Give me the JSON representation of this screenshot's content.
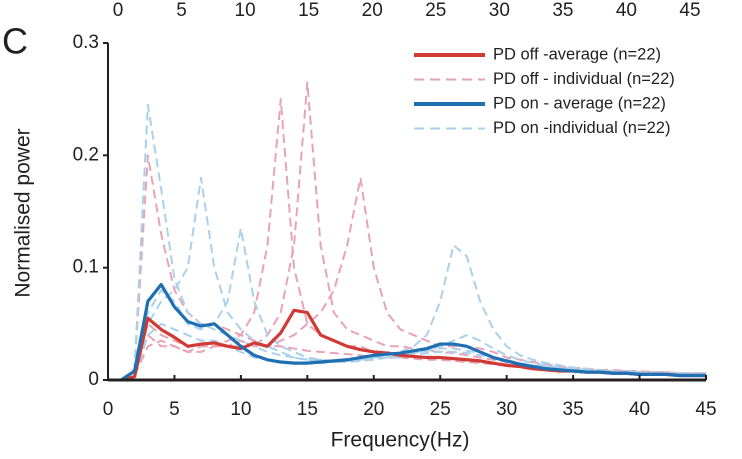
{
  "panel_label": "C",
  "top_axis_ticks": [
    0,
    5,
    10,
    15,
    20,
    25,
    30,
    35,
    40,
    45
  ],
  "chart_data": {
    "type": "line",
    "xlabel": "Frequency(Hz)",
    "ylabel": "Normalised power",
    "x": [
      1,
      2,
      3,
      4,
      5,
      6,
      7,
      8,
      9,
      10,
      11,
      12,
      13,
      14,
      15,
      16,
      17,
      18,
      19,
      20,
      21,
      22,
      23,
      24,
      25,
      26,
      27,
      28,
      29,
      30,
      31,
      32,
      33,
      34,
      35,
      36,
      37,
      38,
      39,
      40,
      41,
      42,
      43,
      44,
      45
    ],
    "xlim": [
      0,
      45
    ],
    "xticks": [
      0,
      5,
      10,
      15,
      20,
      25,
      30,
      35,
      40,
      45
    ],
    "ylim": [
      0,
      0.3
    ],
    "yticks": [
      0,
      0.1,
      0.2,
      0.3
    ],
    "legend_position": "upper right",
    "series": [
      {
        "name": "PD off -average (n=22)",
        "color": "#d13a34",
        "style": "solid",
        "values": [
          0,
          0.003,
          0.055,
          0.045,
          0.038,
          0.03,
          0.032,
          0.033,
          0.03,
          0.028,
          0.033,
          0.03,
          0.042,
          0.062,
          0.06,
          0.04,
          0.035,
          0.03,
          0.027,
          0.025,
          0.024,
          0.022,
          0.021,
          0.02,
          0.02,
          0.019,
          0.018,
          0.017,
          0.015,
          0.013,
          0.012,
          0.01,
          0.009,
          0.008,
          0.008,
          0.007,
          0.007,
          0.006,
          0.006,
          0.005,
          0.005,
          0.005,
          0.004,
          0.004,
          0.004
        ]
      },
      {
        "name": "PD off - individual (n=22)",
        "color": "#e9a3b6",
        "style": "dashed",
        "lines": [
          [
            0,
            0.005,
            0.04,
            0.03,
            0.03,
            0.025,
            0.03,
            0.03,
            0.035,
            0.04,
            0.06,
            0.12,
            0.25,
            0.1,
            0.05,
            0.04,
            0.035,
            0.03,
            0.03,
            0.025,
            0.025,
            0.022,
            0.02,
            0.02,
            0.02,
            0.018,
            0.017,
            0.016,
            0.015,
            0.014,
            0.012,
            0.011,
            0.01,
            0.009,
            0.009,
            0.008,
            0.008,
            0.007,
            0.007,
            0.006,
            0.006,
            0.006,
            0.005,
            0.005,
            0.005
          ],
          [
            0,
            0.003,
            0.05,
            0.04,
            0.035,
            0.03,
            0.03,
            0.03,
            0.03,
            0.03,
            0.03,
            0.04,
            0.06,
            0.12,
            0.265,
            0.12,
            0.06,
            0.045,
            0.04,
            0.035,
            0.03,
            0.03,
            0.028,
            0.026,
            0.025,
            0.024,
            0.022,
            0.02,
            0.018,
            0.016,
            0.014,
            0.012,
            0.011,
            0.01,
            0.009,
            0.009,
            0.008,
            0.008,
            0.007,
            0.007,
            0.006,
            0.006,
            0.006,
            0.005,
            0.005
          ],
          [
            0,
            0.004,
            0.03,
            0.035,
            0.03,
            0.025,
            0.025,
            0.03,
            0.03,
            0.035,
            0.03,
            0.03,
            0.035,
            0.04,
            0.05,
            0.06,
            0.08,
            0.12,
            0.18,
            0.1,
            0.06,
            0.045,
            0.04,
            0.035,
            0.03,
            0.03,
            0.03,
            0.028,
            0.025,
            0.02,
            0.018,
            0.016,
            0.014,
            0.012,
            0.011,
            0.01,
            0.009,
            0.009,
            0.008,
            0.008,
            0.007,
            0.007,
            0.006,
            0.006,
            0.006
          ],
          [
            0,
            0.01,
            0.2,
            0.13,
            0.08,
            0.06,
            0.05,
            0.05,
            0.045,
            0.04,
            0.035,
            0.03,
            0.03,
            0.028,
            0.026,
            0.025,
            0.024,
            0.023,
            0.022,
            0.02,
            0.02,
            0.02,
            0.019,
            0.018,
            0.018,
            0.017,
            0.016,
            0.015,
            0.014,
            0.013,
            0.012,
            0.011,
            0.01,
            0.01,
            0.009,
            0.009,
            0.008,
            0.008,
            0.008,
            0.007,
            0.007,
            0.007,
            0.006,
            0.006,
            0.006
          ]
        ]
      },
      {
        "name": "PD on - average (n=22)",
        "color": "#1f6fb3",
        "style": "solid",
        "values": [
          0,
          0.008,
          0.07,
          0.085,
          0.065,
          0.052,
          0.048,
          0.05,
          0.04,
          0.03,
          0.022,
          0.018,
          0.016,
          0.015,
          0.015,
          0.016,
          0.017,
          0.018,
          0.02,
          0.022,
          0.023,
          0.024,
          0.026,
          0.028,
          0.032,
          0.032,
          0.03,
          0.025,
          0.02,
          0.017,
          0.014,
          0.012,
          0.01,
          0.009,
          0.008,
          0.007,
          0.007,
          0.006,
          0.006,
          0.005,
          0.005,
          0.005,
          0.004,
          0.004,
          0.004
        ]
      },
      {
        "name": "PD on -individual (n=22)",
        "color": "#a9d1ec",
        "style": "dashed",
        "lines": [
          [
            0,
            0.01,
            0.245,
            0.17,
            0.09,
            0.06,
            0.05,
            0.045,
            0.04,
            0.035,
            0.03,
            0.025,
            0.022,
            0.02,
            0.018,
            0.018,
            0.017,
            0.017,
            0.018,
            0.02,
            0.02,
            0.022,
            0.024,
            0.026,
            0.028,
            0.028,
            0.026,
            0.024,
            0.02,
            0.018,
            0.015,
            0.013,
            0.012,
            0.01,
            0.009,
            0.008,
            0.008,
            0.007,
            0.007,
            0.006,
            0.006,
            0.005,
            0.005,
            0.005,
            0.005
          ],
          [
            0,
            0.005,
            0.05,
            0.07,
            0.08,
            0.1,
            0.18,
            0.1,
            0.06,
            0.045,
            0.035,
            0.03,
            0.025,
            0.02,
            0.018,
            0.016,
            0.016,
            0.016,
            0.017,
            0.018,
            0.02,
            0.02,
            0.022,
            0.024,
            0.025,
            0.025,
            0.024,
            0.022,
            0.02,
            0.017,
            0.015,
            0.013,
            0.012,
            0.01,
            0.009,
            0.008,
            0.008,
            0.007,
            0.007,
            0.006,
            0.006,
            0.006,
            0.005,
            0.005,
            0.005
          ],
          [
            0,
            0.004,
            0.04,
            0.05,
            0.045,
            0.04,
            0.035,
            0.035,
            0.03,
            0.025,
            0.02,
            0.018,
            0.016,
            0.015,
            0.015,
            0.015,
            0.016,
            0.017,
            0.018,
            0.02,
            0.022,
            0.025,
            0.03,
            0.04,
            0.07,
            0.12,
            0.11,
            0.07,
            0.045,
            0.03,
            0.022,
            0.018,
            0.015,
            0.013,
            0.011,
            0.01,
            0.009,
            0.008,
            0.008,
            0.007,
            0.007,
            0.006,
            0.006,
            0.006,
            0.006
          ],
          [
            0,
            0.006,
            0.06,
            0.08,
            0.07,
            0.05,
            0.045,
            0.05,
            0.07,
            0.135,
            0.07,
            0.04,
            0.03,
            0.025,
            0.02,
            0.018,
            0.017,
            0.017,
            0.018,
            0.019,
            0.02,
            0.022,
            0.024,
            0.026,
            0.03,
            0.035,
            0.04,
            0.035,
            0.028,
            0.022,
            0.018,
            0.015,
            0.013,
            0.011,
            0.01,
            0.009,
            0.008,
            0.008,
            0.007,
            0.007,
            0.006,
            0.006,
            0.006,
            0.005,
            0.005
          ]
        ]
      }
    ]
  }
}
